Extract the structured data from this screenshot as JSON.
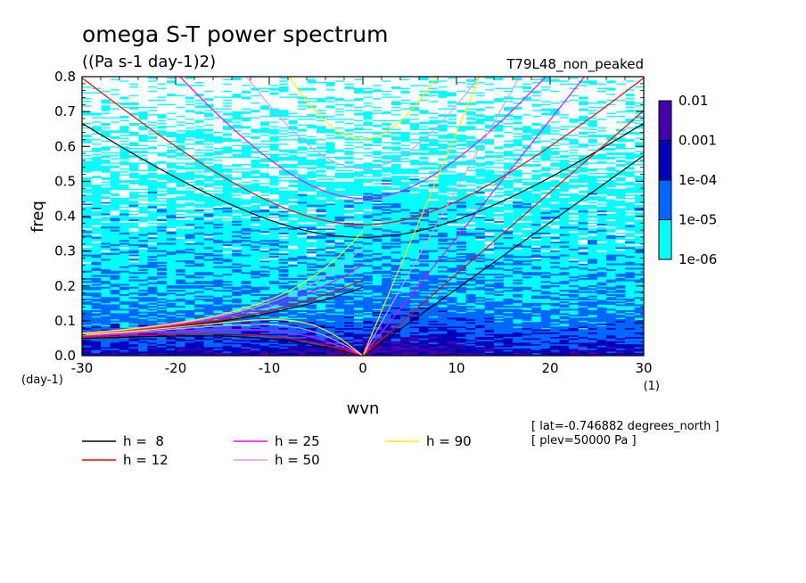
{
  "chart_data": {
    "type": "heatmap",
    "title": "omega S-T power spectrum",
    "subtitle": "((Pa s-1 day-1)2)",
    "run_label": "T79L48_non_peaked",
    "xlabel": "wvn",
    "ylabel": "freq",
    "x_unit": "(1)",
    "y_unit": "(day-1)",
    "xlim": [
      -30,
      30
    ],
    "ylim": [
      0,
      0.8
    ],
    "x_ticks": [
      -30,
      -20,
      -10,
      0,
      10,
      20,
      30
    ],
    "y_ticks": [
      0.0,
      0.1,
      0.2,
      0.3,
      0.4,
      0.5,
      0.6,
      0.7,
      0.8
    ],
    "x_tick_labels": [
      "-30",
      "-20",
      "-10",
      "0",
      "10",
      "20",
      "30"
    ],
    "y_tick_labels": [
      "0.0",
      "0.1",
      "0.2",
      "0.3",
      "0.4",
      "0.5",
      "0.6",
      "0.7",
      "0.8"
    ],
    "colorbar": {
      "levels": [
        "1e-06",
        "1e-05",
        "1e-04",
        "0.001",
        "0.01"
      ],
      "colors": [
        "#00ffff",
        "#0066ff",
        "#0000bb",
        "#4400aa"
      ]
    },
    "background_color": "#ffffff",
    "curves": [
      {
        "name": "h =  8",
        "depth": 8,
        "color": "#000000"
      },
      {
        "name": "h = 12",
        "depth": 12,
        "color": "#ff0000"
      },
      {
        "name": "h = 25",
        "depth": 25,
        "color": "#ff00ff"
      },
      {
        "name": "h = 50",
        "depth": 50,
        "color": "#dd99ee"
      },
      {
        "name": "h = 90",
        "depth": 90,
        "color": "#ffee00"
      }
    ],
    "annotations": [
      "[ lat=-0.746882 degrees_north ]",
      "[ plev=50000 Pa ]"
    ],
    "grid": false,
    "legend_position": "bottom"
  }
}
